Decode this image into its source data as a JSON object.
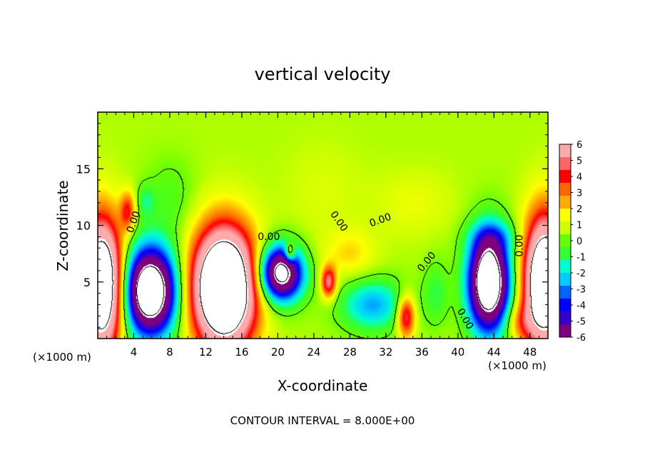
{
  "chart_data": {
    "type": "heatmap",
    "title": "vertical velocity",
    "xlabel": "X-coordinate",
    "ylabel": "Z-coordinate",
    "x_unit": "(×1000 m)",
    "x_unit_right": "(×1000 m)",
    "footer": "CONTOUR INTERVAL = 8.000E+00",
    "xlim": [
      0,
      50
    ],
    "ylim": [
      0,
      20
    ],
    "x_ticks": [
      4,
      8,
      12,
      16,
      20,
      24,
      28,
      32,
      36,
      40,
      44,
      48
    ],
    "y_ticks": [
      5,
      10,
      15
    ],
    "colorbar": {
      "range": [
        -6,
        6
      ],
      "ticks": [
        6,
        5,
        4,
        3,
        2,
        1,
        0,
        -1,
        -2,
        -3,
        -4,
        -5,
        -6
      ],
      "colors": [
        "#7f007f",
        "#3300cc",
        "#0000ff",
        "#0066ff",
        "#00ccff",
        "#00ffcc",
        "#33ff33",
        "#66ff00",
        "#ccff00",
        "#ffff00",
        "#ffaa00",
        "#ff6600",
        "#ff0000",
        "#ff6666",
        "#ffaaaa"
      ]
    },
    "contour_labels": [
      {
        "text": "0.00",
        "x": 4.3,
        "y": 10.2,
        "angle": -70
      },
      {
        "text": "0.00",
        "x": 19.0,
        "y": 8.7,
        "angle": 0
      },
      {
        "text": "0.00",
        "x": 26.5,
        "y": 10.2,
        "angle": 55
      },
      {
        "text": "0.00",
        "x": 31.5,
        "y": 10.2,
        "angle": -20
      },
      {
        "text": "0.00",
        "x": 36.8,
        "y": 6.6,
        "angle": -50
      },
      {
        "text": "0.00",
        "x": 40.5,
        "y": 1.6,
        "angle": 60
      },
      {
        "text": "0.00",
        "x": 47.2,
        "y": 8.2,
        "angle": -90
      }
    ],
    "features": [
      {
        "x": 0.4,
        "y": 4.7,
        "sx": 1.6,
        "sy": 4.0,
        "value": 12
      },
      {
        "x": 5.8,
        "y": 4.2,
        "sx": 2.0,
        "sy": 2.7,
        "value": -12
      },
      {
        "x": 14.0,
        "y": 4.5,
        "sx": 2.4,
        "sy": 3.6,
        "value": 14
      },
      {
        "x": 20.3,
        "y": 5.8,
        "sx": 1.7,
        "sy": 1.7,
        "value": -10
      },
      {
        "x": 25.6,
        "y": 5.0,
        "sx": 0.6,
        "sy": 1.0,
        "value": 5
      },
      {
        "x": 30.5,
        "y": 3.0,
        "sx": 2.5,
        "sy": 1.6,
        "value": -3.5
      },
      {
        "x": 34.2,
        "y": 2.0,
        "sx": 0.7,
        "sy": 1.3,
        "value": 5
      },
      {
        "x": 37.5,
        "y": 4.0,
        "sx": 1.0,
        "sy": 2.0,
        "value": -1.5
      },
      {
        "x": 43.4,
        "y": 5.0,
        "sx": 1.6,
        "sy": 3.0,
        "value": -12
      },
      {
        "x": 49.6,
        "y": 5.0,
        "sx": 1.6,
        "sy": 4.0,
        "value": 12
      },
      {
        "x": 3.3,
        "y": 11.3,
        "sx": 0.6,
        "sy": 1.2,
        "value": 3.5
      },
      {
        "x": 5.3,
        "y": 12.2,
        "sx": 0.7,
        "sy": 1.0,
        "value": -1.5
      },
      {
        "x": 8.0,
        "y": 12.5,
        "sx": 2.0,
        "sy": 2.5,
        "value": -1
      },
      {
        "x": 21.3,
        "y": 7.6,
        "sx": 0.4,
        "sy": 0.6,
        "value": 4
      },
      {
        "x": 28.0,
        "y": 7.5,
        "sx": 2.0,
        "sy": 1.5,
        "value": 1.5
      },
      {
        "x": 46.8,
        "y": 1.5,
        "sx": 1.2,
        "sy": 1.2,
        "value": 2
      },
      {
        "x": 44.0,
        "y": 9.0,
        "sx": 2.0,
        "sy": 1.0,
        "value": -1.5
      },
      {
        "x": 25.0,
        "y": 13.0,
        "sx": 3.0,
        "sy": 3.0,
        "value": 0.5
      },
      {
        "x": 35.0,
        "y": 12.0,
        "sx": 3.0,
        "sy": 2.0,
        "value": 0.8
      }
    ]
  }
}
